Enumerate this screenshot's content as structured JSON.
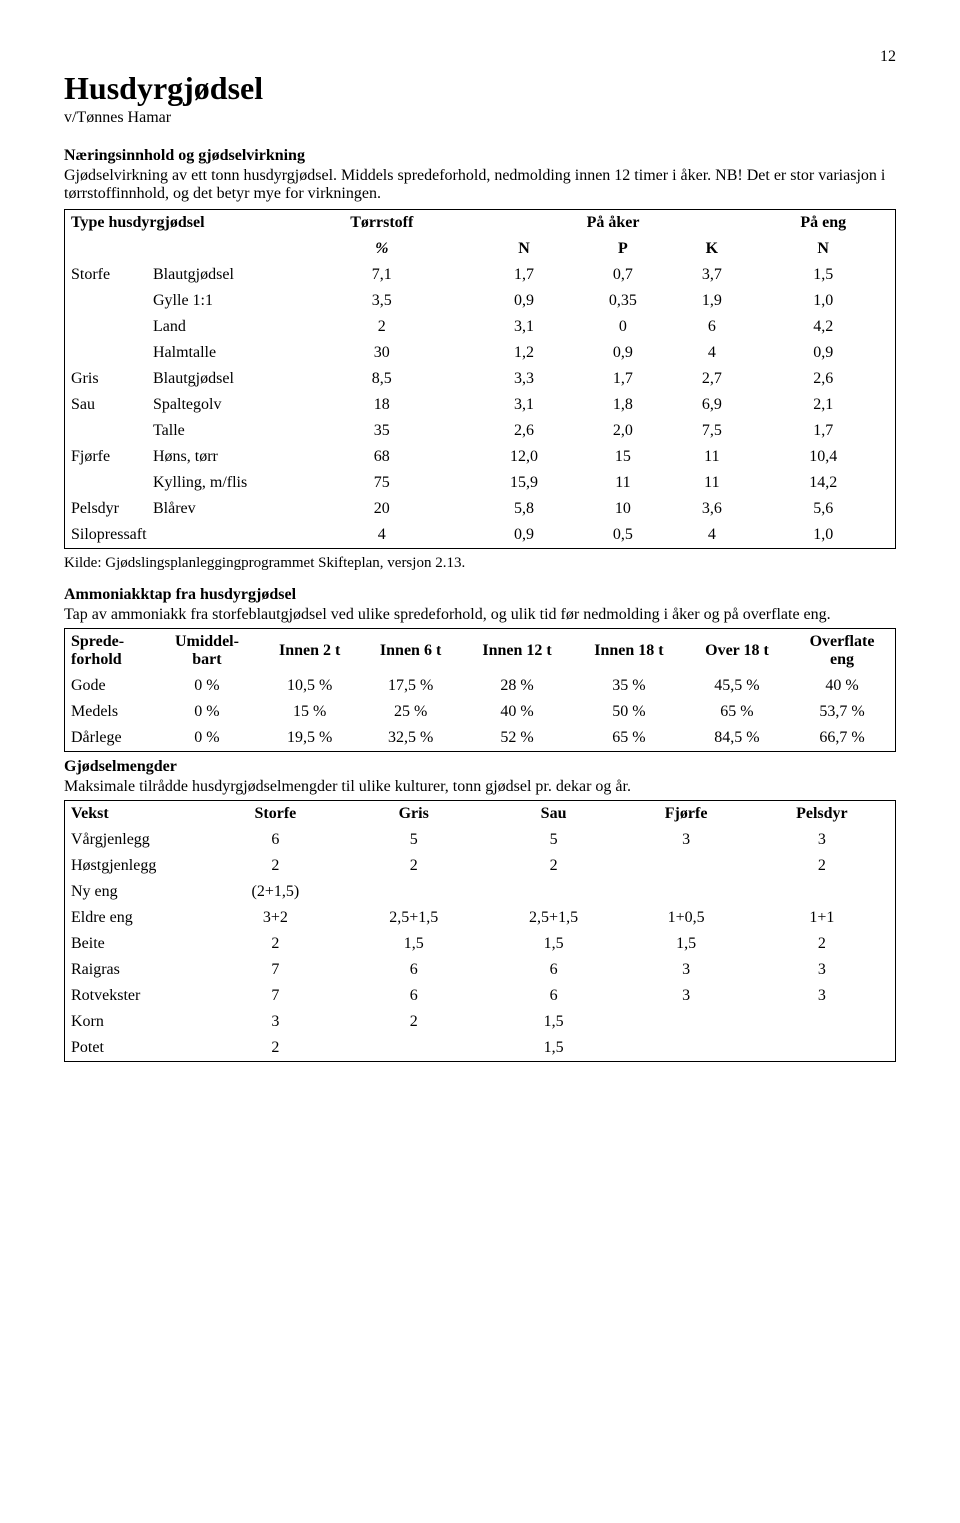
{
  "pageNumber": "12",
  "title": "Husdyrgjødsel",
  "subtitle": "v/Tønnes Hamar",
  "section1": {
    "heading": "Næringsinnhold og gjødselvirkning",
    "intro": "Gjødselvirkning av ett tonn husdyrgjødsel. Middels spredeforhold, nedmolding innen 12 timer i åker. NB! Det er stor variasjon i tørrstoffinnhold, og det betyr mye for virkningen."
  },
  "table1": {
    "headers": {
      "type": "Type husdyrgjødsel",
      "torrstoff": "Tørrstoff",
      "aker": "På åker",
      "eng": "På eng",
      "pct": "%",
      "n": "N",
      "p": "P",
      "k": "K",
      "n2": "N"
    },
    "rows": [
      {
        "g": "Storfe",
        "t": "Blautgjødsel",
        "c": [
          "7,1",
          "1,7",
          "0,7",
          "3,7",
          "1,5"
        ]
      },
      {
        "g": "",
        "t": "Gylle 1:1",
        "c": [
          "3,5",
          "0,9",
          "0,35",
          "1,9",
          "1,0"
        ]
      },
      {
        "g": "",
        "t": "Land",
        "c": [
          "2",
          "3,1",
          "0",
          "6",
          "4,2"
        ]
      },
      {
        "g": "",
        "t": "Halmtalle",
        "c": [
          "30",
          "1,2",
          "0,9",
          "4",
          "0,9"
        ]
      },
      {
        "g": "Gris",
        "t": "Blautgjødsel",
        "c": [
          "8,5",
          "3,3",
          "1,7",
          "2,7",
          "2,6"
        ]
      },
      {
        "g": "Sau",
        "t": "Spaltegolv",
        "c": [
          "18",
          "3,1",
          "1,8",
          "6,9",
          "2,1"
        ]
      },
      {
        "g": "",
        "t": "Talle",
        "c": [
          "35",
          "2,6",
          "2,0",
          "7,5",
          "1,7"
        ]
      },
      {
        "g": "Fjørfe",
        "t": "Høns, tørr",
        "c": [
          "68",
          "12,0",
          "15",
          "11",
          "10,4"
        ]
      },
      {
        "g": "",
        "t": "Kylling, m/flis",
        "c": [
          "75",
          "15,9",
          "11",
          "11",
          "14,2"
        ]
      },
      {
        "g": "Pelsdyr",
        "t": "Blårev",
        "c": [
          "20",
          "5,8",
          "10",
          "3,6",
          "5,6"
        ]
      },
      {
        "g": "Silopressaft",
        "t": "",
        "c": [
          "4",
          "0,9",
          "0,5",
          "4",
          "1,0"
        ]
      }
    ],
    "source": "Kilde: Gjødslingsplanleggingprogrammet Skifteplan, versjon 2.13."
  },
  "section2": {
    "heading": "Ammoniakktap fra husdyrgjødsel",
    "intro": "Tap av ammoniakk fra storfeblautgjødsel ved ulike spredeforhold, og ulik tid før nedmolding i åker og på overflate eng."
  },
  "table2": {
    "headers": [
      "Sprede-forhold",
      "Umiddel-bart",
      "Innen 2 t",
      "Innen 6 t",
      "Innen 12 t",
      "Innen 18 t",
      "Over 18 t",
      "Overflate eng"
    ],
    "rows": [
      {
        "l": "Gode",
        "c": [
          "0 %",
          "10,5 %",
          "17,5 %",
          "28 %",
          "35 %",
          "45,5 %",
          "40 %"
        ]
      },
      {
        "l": "Medels",
        "c": [
          "0 %",
          "15 %",
          "25 %",
          "40 %",
          "50 %",
          "65 %",
          "53,7 %"
        ]
      },
      {
        "l": "Dårlege",
        "c": [
          "0 %",
          "19,5 %",
          "32,5 %",
          "52 %",
          "65 %",
          "84,5 %",
          "66,7 %"
        ]
      }
    ]
  },
  "section3": {
    "heading": "Gjødselmengder",
    "intro": "Maksimale tilrådde husdyrgjødselmengder til ulike kulturer, tonn gjødsel pr. dekar og år."
  },
  "table3": {
    "headers": [
      "Vekst",
      "Storfe",
      "Gris",
      "Sau",
      "Fjørfe",
      "Pelsdyr"
    ],
    "rows": [
      {
        "l": "Vårgjenlegg",
        "c": [
          "6",
          "5",
          "5",
          "3",
          "3"
        ]
      },
      {
        "l": "Høstgjenlegg",
        "c": [
          "2",
          "2",
          "2",
          "",
          "2"
        ]
      },
      {
        "l": "Ny eng",
        "c": [
          "(2+1,5)",
          "",
          "",
          "",
          ""
        ]
      },
      {
        "l": "Eldre eng",
        "c": [
          "3+2",
          "2,5+1,5",
          "2,5+1,5",
          "1+0,5",
          "1+1"
        ]
      },
      {
        "l": "Beite",
        "c": [
          "2",
          "1,5",
          "1,5",
          "1,5",
          "2"
        ]
      },
      {
        "l": "Raigras",
        "c": [
          "7",
          "6",
          "6",
          "3",
          "3"
        ]
      },
      {
        "l": "Rotvekster",
        "c": [
          "7",
          "6",
          "6",
          "3",
          "3"
        ]
      },
      {
        "l": "Korn",
        "c": [
          "3",
          "2",
          "1,5",
          "",
          ""
        ]
      },
      {
        "l": "Potet",
        "c": [
          "2",
          "",
          "1,5",
          "",
          ""
        ]
      }
    ]
  }
}
